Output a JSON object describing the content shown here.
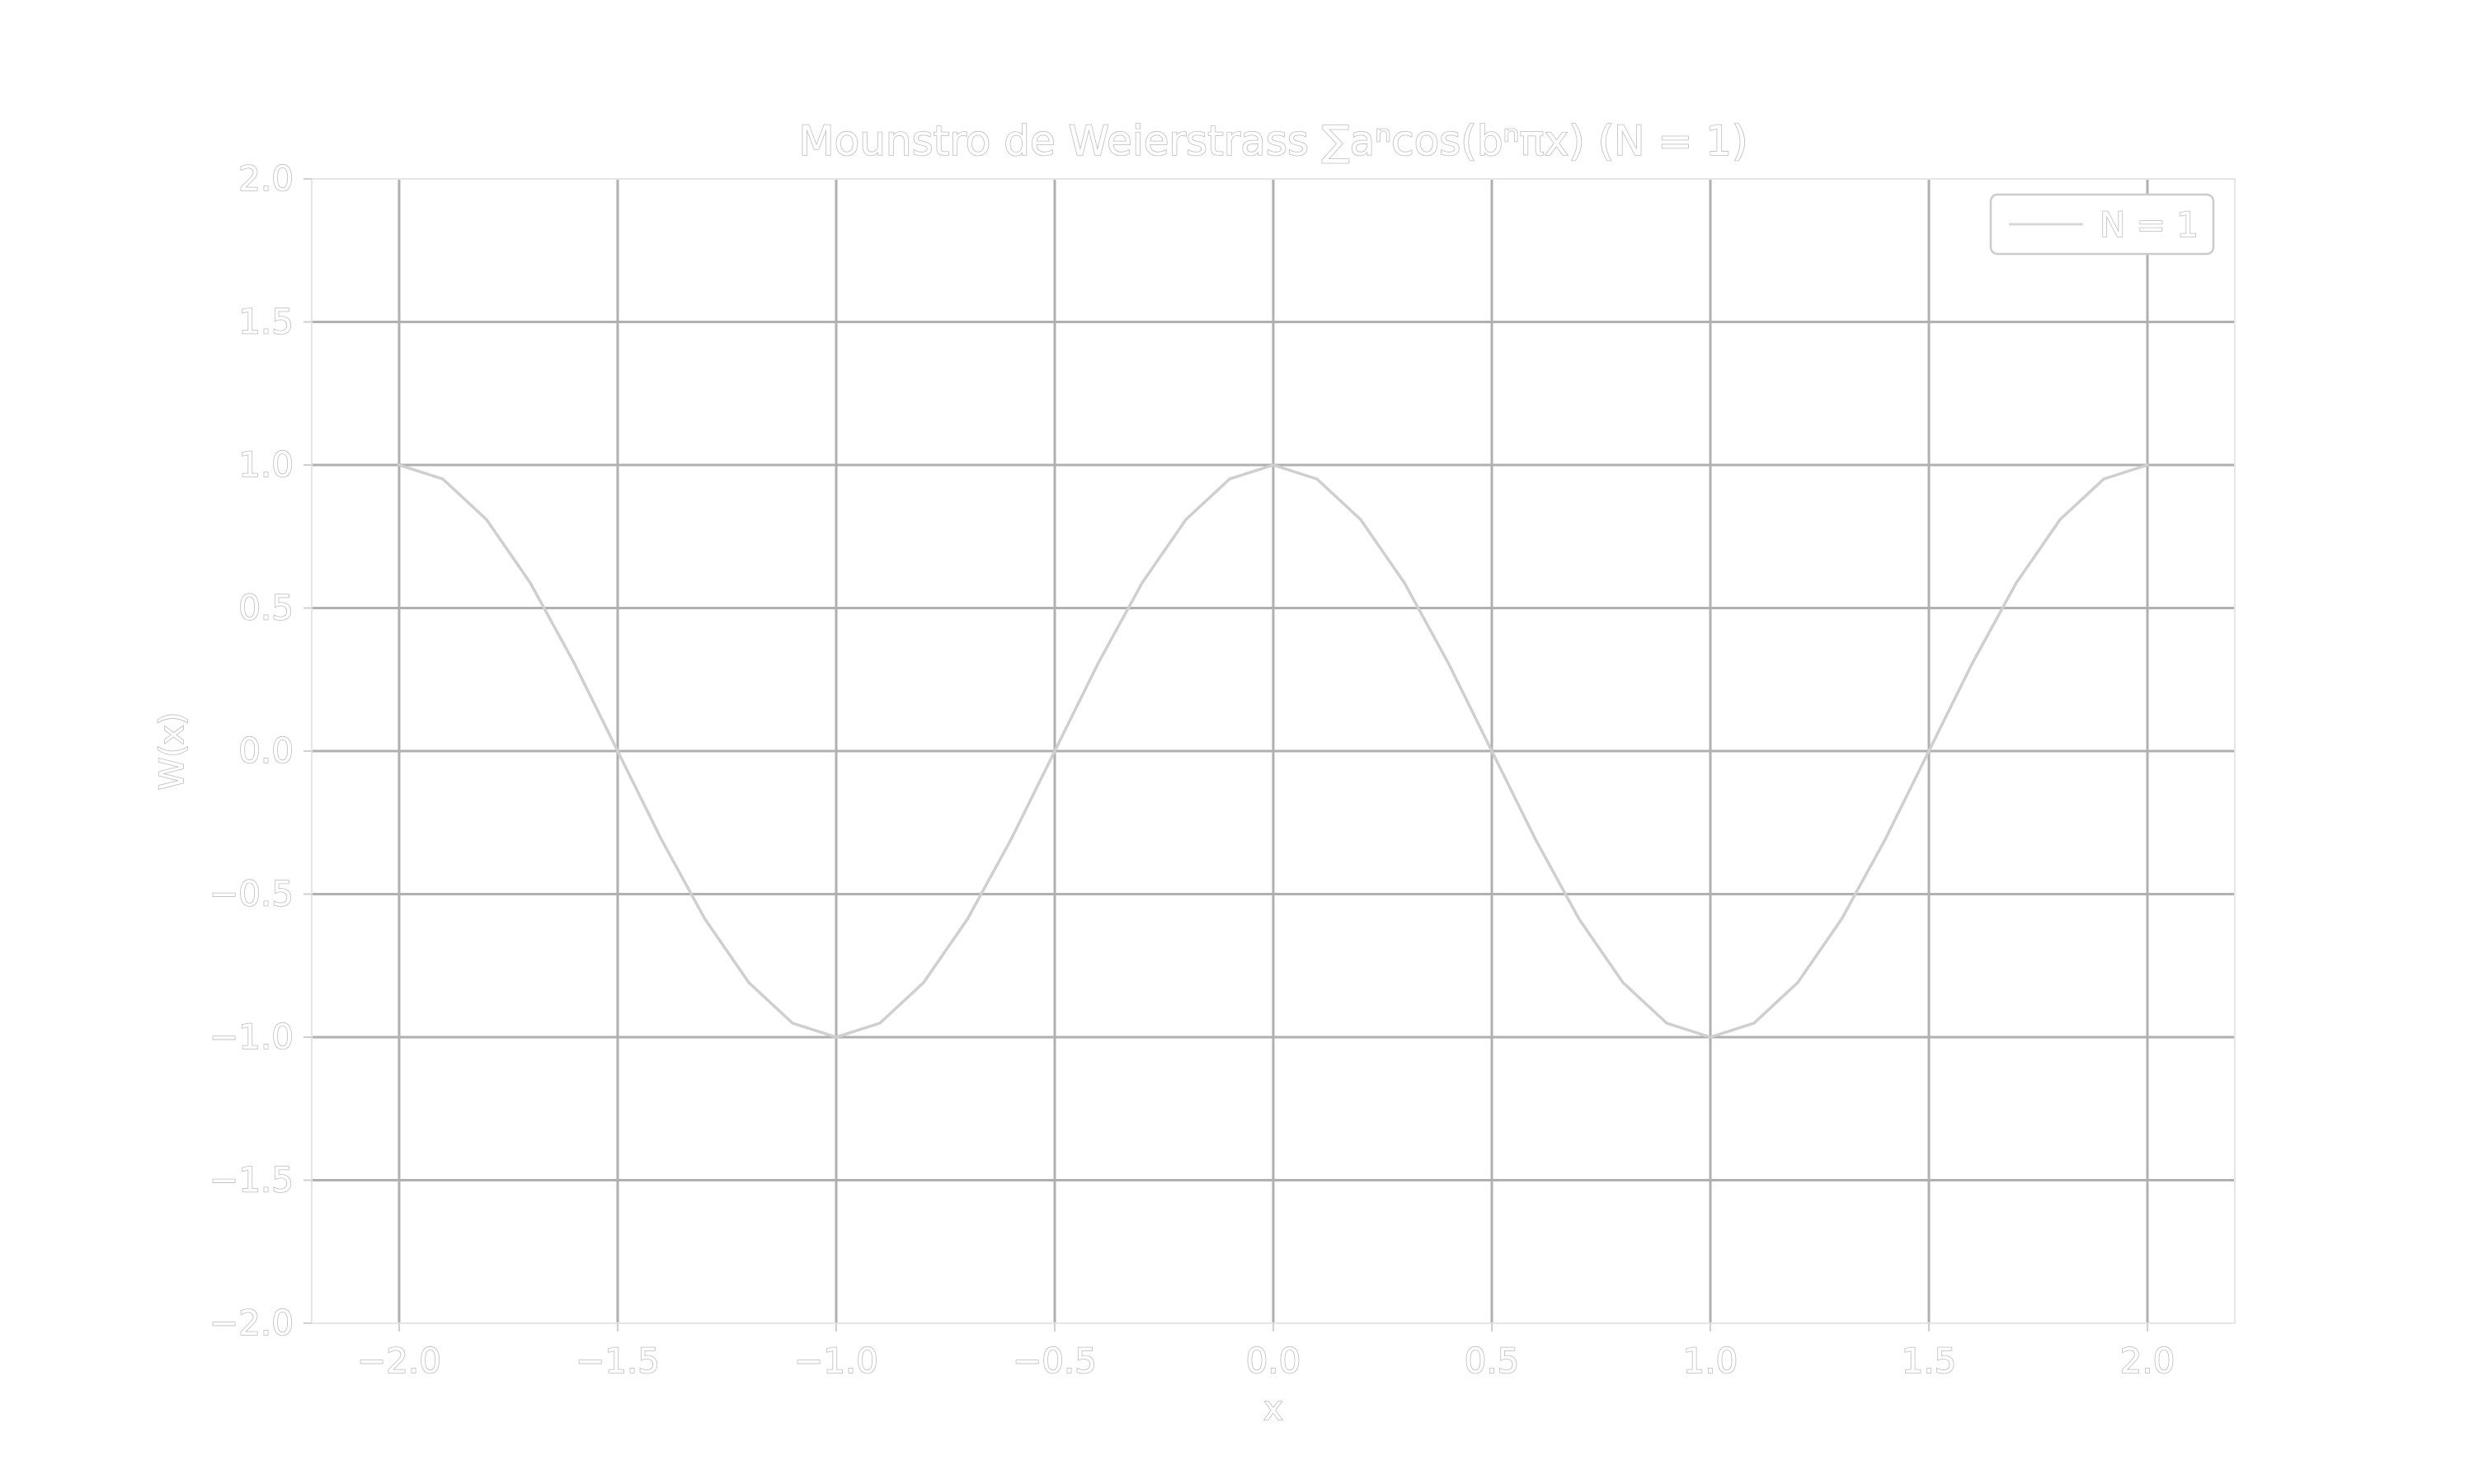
{
  "chart_data": {
    "type": "line",
    "title": "Mounstro de Weierstrass ∑aⁿcos(bⁿπx) (N = 1)",
    "xlabel": "x",
    "ylabel": "W(x)",
    "xlim": [
      -2.2,
      2.2
    ],
    "ylim": [
      -2.0,
      2.0
    ],
    "grid": true,
    "legend_position": "top-right",
    "x_ticks": [
      -2.0,
      -1.5,
      -1.0,
      -0.5,
      0.0,
      0.5,
      1.0,
      1.5,
      2.0
    ],
    "x_tick_labels": [
      "−2.0",
      "−1.5",
      "−1.0",
      "−0.5",
      "0.0",
      "0.5",
      "1.0",
      "1.5",
      "2.0"
    ],
    "y_ticks": [
      -2.0,
      -1.5,
      -1.0,
      -0.5,
      0.0,
      0.5,
      1.0,
      1.5,
      2.0
    ],
    "y_tick_labels": [
      "−2.0",
      "−1.5",
      "−1.0",
      "−0.5",
      "0.0",
      "0.5",
      "1.0",
      "1.5",
      "2.0"
    ],
    "series": [
      {
        "name": "N = 1",
        "x": [
          -2.0,
          -1.9,
          -1.8,
          -1.7,
          -1.6,
          -1.5,
          -1.4,
          -1.3,
          -1.2,
          -1.1,
          -1.0,
          -0.9,
          -0.8,
          -0.7,
          -0.6,
          -0.5,
          -0.4,
          -0.3,
          -0.2,
          -0.1,
          0.0,
          0.1,
          0.2,
          0.3,
          0.4,
          0.5,
          0.6,
          0.7,
          0.8,
          0.9,
          1.0,
          1.1,
          1.2,
          1.3,
          1.4,
          1.5,
          1.6,
          1.7,
          1.8,
          1.9,
          2.0
        ],
        "y": [
          1.0,
          0.951,
          0.809,
          0.588,
          0.309,
          0.0,
          -0.309,
          -0.588,
          -0.809,
          -0.951,
          -1.0,
          -0.951,
          -0.809,
          -0.588,
          -0.309,
          0.0,
          0.309,
          0.588,
          0.809,
          0.951,
          1.0,
          0.951,
          0.809,
          0.588,
          0.309,
          0.0,
          -0.309,
          -0.588,
          -0.809,
          -0.951,
          -1.0,
          -0.951,
          -0.809,
          -0.588,
          -0.309,
          0.0,
          0.309,
          0.588,
          0.809,
          0.951,
          1.0
        ]
      }
    ]
  },
  "colors": {
    "background": "#ffffff",
    "grid": "#b0b0b0",
    "text_outline": "#bdbdbd",
    "series_line": "#cfcfcf"
  }
}
